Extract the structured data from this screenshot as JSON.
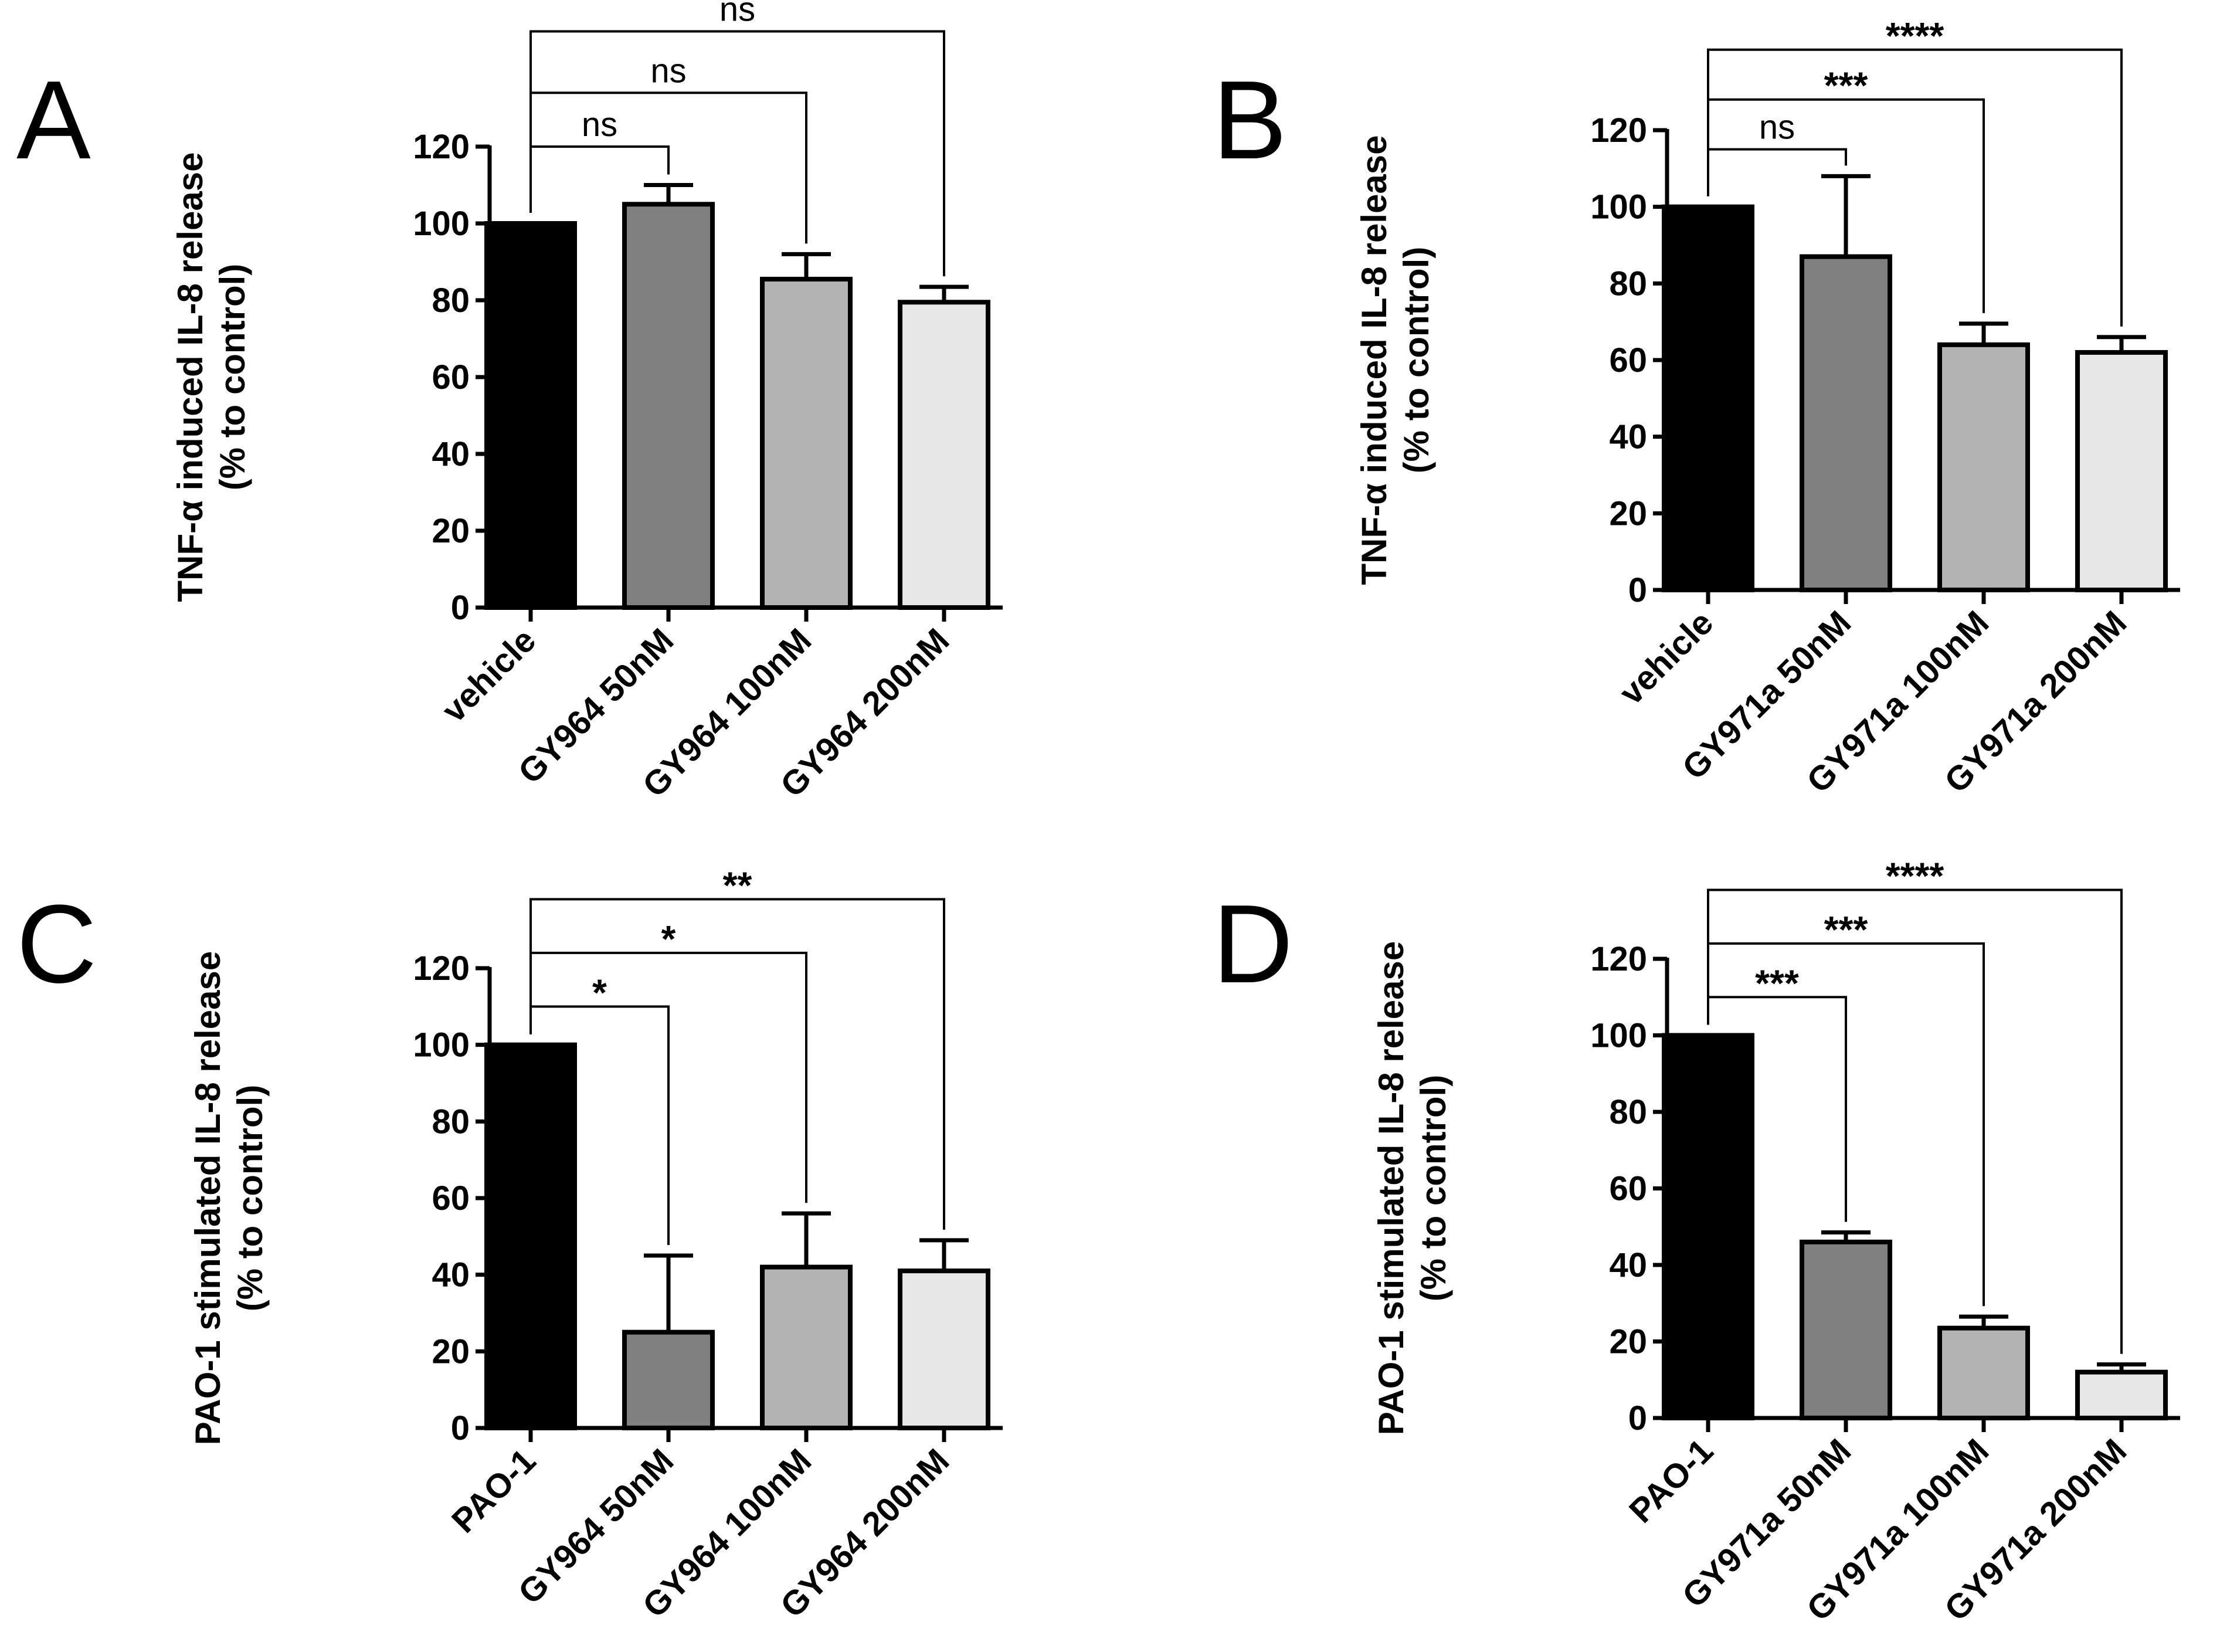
{
  "chart_data": [
    {
      "panel": "A",
      "type": "bar",
      "ylabel": [
        "TNF-α induced IL-8 release",
        "(% to control)"
      ],
      "ylim": [
        0,
        120
      ],
      "yticks": [
        0,
        20,
        40,
        60,
        80,
        100,
        120
      ],
      "categories": [
        "vehicle",
        "GY964 50nM",
        "GY964 100nM",
        "GY964 200nM"
      ],
      "values": [
        100,
        105,
        85.5,
        79.5
      ],
      "errors": [
        0,
        5,
        6.5,
        4
      ],
      "colors": [
        "#000000",
        "#808080",
        "#b3b3b3",
        "#e6e6e6"
      ],
      "significance": [
        {
          "from": 0,
          "to": 1,
          "label": "ns",
          "y": 120
        },
        {
          "from": 0,
          "to": 2,
          "label": "ns",
          "y": 134
        },
        {
          "from": 0,
          "to": 3,
          "label": "ns",
          "y": 150
        }
      ]
    },
    {
      "panel": "B",
      "type": "bar",
      "ylabel": [
        "TNF-α induced IL-8 release",
        "(% to control)"
      ],
      "ylim": [
        0,
        120
      ],
      "yticks": [
        0,
        20,
        40,
        60,
        80,
        100,
        120
      ],
      "categories": [
        "vehicle",
        "GY971a 50nM",
        "GY971a 100nM",
        "GY971a 200nM"
      ],
      "values": [
        100,
        87,
        64,
        62
      ],
      "errors": [
        0,
        21,
        5.5,
        4
      ],
      "colors": [
        "#000000",
        "#808080",
        "#b3b3b3",
        "#e6e6e6"
      ],
      "significance": [
        {
          "from": 0,
          "to": 1,
          "label": "ns",
          "y": 115
        },
        {
          "from": 0,
          "to": 2,
          "label": "***",
          "y": 128
        },
        {
          "from": 0,
          "to": 3,
          "label": "****",
          "y": 141
        }
      ]
    },
    {
      "panel": "C",
      "type": "bar",
      "ylabel": [
        "PAO-1 stimulated IL-8 release",
        "(% to control)"
      ],
      "ylim": [
        0,
        120
      ],
      "yticks": [
        0,
        20,
        40,
        60,
        80,
        100,
        120
      ],
      "categories": [
        "PAO-1",
        "GY964 50nM",
        "GY964 100nM",
        "GY964 200nM"
      ],
      "values": [
        100,
        25,
        42,
        41
      ],
      "errors": [
        0,
        20,
        14,
        8
      ],
      "colors": [
        "#000000",
        "#808080",
        "#b3b3b3",
        "#e6e6e6"
      ],
      "significance": [
        {
          "from": 0,
          "to": 1,
          "label": "*",
          "y": 110
        },
        {
          "from": 0,
          "to": 2,
          "label": "*",
          "y": 124
        },
        {
          "from": 0,
          "to": 3,
          "label": "**",
          "y": 138
        }
      ]
    },
    {
      "panel": "D",
      "type": "bar",
      "ylabel": [
        "PAO-1 stimulated IL-8 release",
        "(% to control)"
      ],
      "ylim": [
        0,
        120
      ],
      "yticks": [
        0,
        20,
        40,
        60,
        80,
        100,
        120
      ],
      "categories": [
        "PAO-1",
        "GY971a 50nM",
        "GY971a 100nM",
        "GY971a 200nM"
      ],
      "values": [
        100,
        46,
        23.5,
        12
      ],
      "errors": [
        0,
        2.5,
        3,
        2
      ],
      "colors": [
        "#000000",
        "#808080",
        "#b3b3b3",
        "#e6e6e6"
      ],
      "significance": [
        {
          "from": 0,
          "to": 1,
          "label": "***",
          "y": 110
        },
        {
          "from": 0,
          "to": 2,
          "label": "***",
          "y": 124
        },
        {
          "from": 0,
          "to": 3,
          "label": "****",
          "y": 138
        }
      ]
    }
  ]
}
